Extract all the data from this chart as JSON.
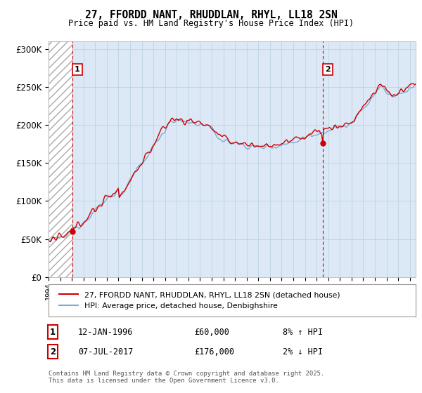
{
  "title1": "27, FFORDD NANT, RHUDDLAN, RHYL, LL18 2SN",
  "title2": "Price paid vs. HM Land Registry's House Price Index (HPI)",
  "ylabel_ticks": [
    "£0",
    "£50K",
    "£100K",
    "£150K",
    "£200K",
    "£250K",
    "£300K"
  ],
  "ytick_values": [
    0,
    50000,
    100000,
    150000,
    200000,
    250000,
    300000
  ],
  "ylim": [
    0,
    310000
  ],
  "xlim_start": 1994.0,
  "xlim_end": 2025.5,
  "sale1_x": 1996.04,
  "sale1_y": 60000,
  "sale2_x": 2017.52,
  "sale2_y": 176000,
  "hpi_color": "#7aadd4",
  "price_color": "#cc0000",
  "marker_color": "#cc0000",
  "dashed_line_color": "#cc0000",
  "legend_price_label": "27, FFORDD NANT, RHUDDLAN, RHYL, LL18 2SN (detached house)",
  "legend_hpi_label": "HPI: Average price, detached house, Denbighshire",
  "info1_num": "1",
  "info1_date": "12-JAN-1996",
  "info1_price": "£60,000",
  "info1_hpi": "8% ↑ HPI",
  "info2_num": "2",
  "info2_date": "07-JUL-2017",
  "info2_price": "£176,000",
  "info2_hpi": "2% ↓ HPI",
  "footnote": "Contains HM Land Registry data © Crown copyright and database right 2025.\nThis data is licensed under the Open Government Licence v3.0.",
  "hatched_region_end": 1996.04,
  "plot_bg_color": "#dce8f5",
  "fig_bg_color": "#ffffff"
}
